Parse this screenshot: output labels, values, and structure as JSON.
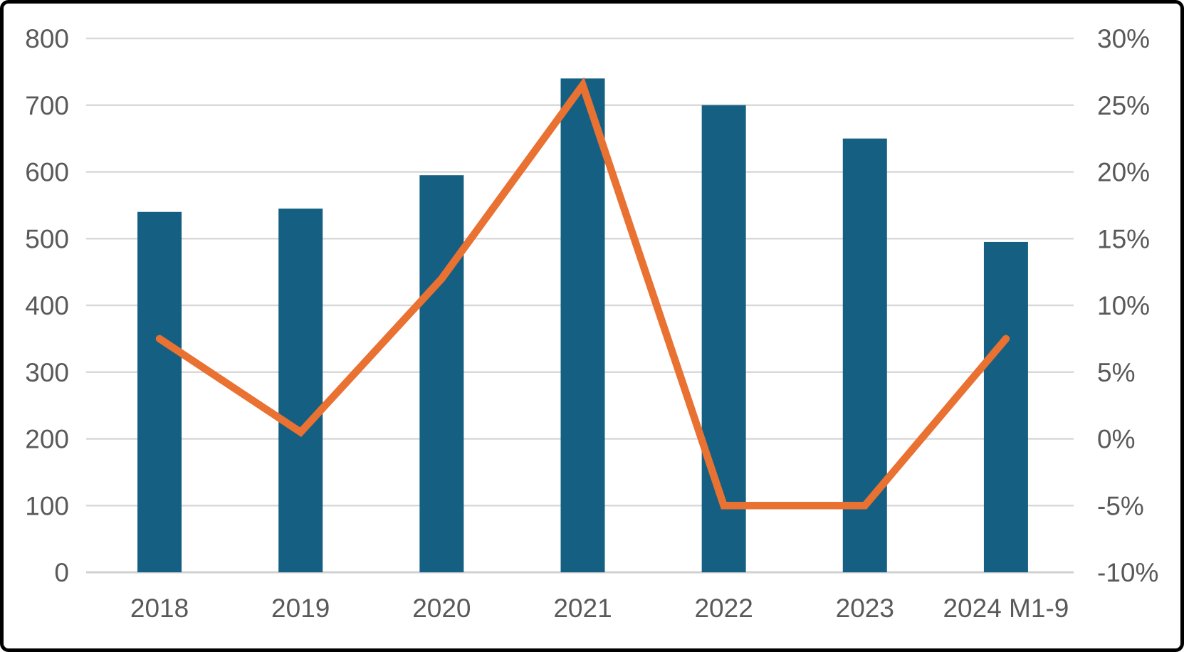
{
  "chart_data": {
    "type": "combo",
    "title": "",
    "legend": false,
    "grid": true,
    "categories": [
      "2018",
      "2019",
      "2020",
      "2021",
      "2022",
      "2023",
      "2024 M1-9"
    ],
    "series": [
      {
        "id": "bars",
        "type": "bar",
        "axis": "left",
        "color": "#156082",
        "values": [
          540,
          545,
          595,
          740,
          700,
          650,
          495
        ]
      },
      {
        "id": "line",
        "type": "line",
        "axis": "right",
        "color": "#E97132",
        "unit": "%",
        "values": [
          7.5,
          0.5,
          12,
          26.5,
          -5,
          -5,
          7.5
        ]
      }
    ],
    "left_axis": {
      "min": 0,
      "max": 800,
      "step": 100,
      "tick_labels": [
        "0",
        "100",
        "200",
        "300",
        "400",
        "500",
        "600",
        "700",
        "800"
      ]
    },
    "right_axis": {
      "min": -10,
      "max": 30,
      "step": 5,
      "unit": "%",
      "tick_labels": [
        "-10%",
        "-5%",
        "0%",
        "5%",
        "10%",
        "15%",
        "20%",
        "25%",
        "30%"
      ]
    }
  },
  "styles": {
    "axis_text_color": "#595959",
    "gridline_color": "#D9D9D9",
    "baseline_color": "#D0D0D0",
    "background": "#FFFFFF",
    "frame_border": "#000000"
  }
}
